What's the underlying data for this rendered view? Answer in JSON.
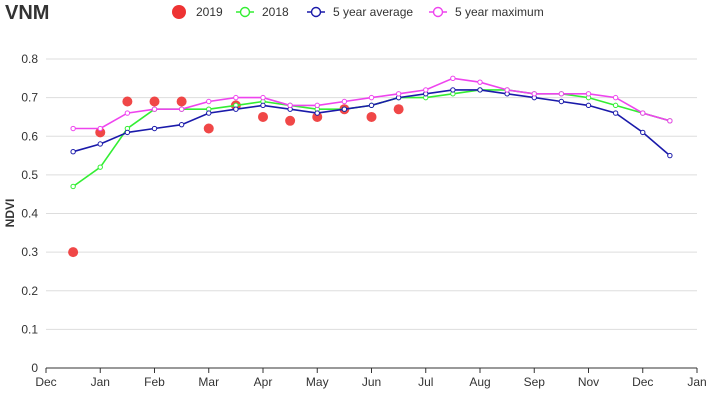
{
  "chart_data": {
    "type": "line",
    "title": "VNM",
    "xlabel": "",
    "ylabel": "NDVI",
    "ylim": [
      0,
      0.8
    ],
    "xlim": [
      "Dec",
      "Jan"
    ],
    "x_tick_labels": [
      "Dec",
      "Jan",
      "Feb",
      "Mar",
      "Apr",
      "May",
      "Jun",
      "Jul",
      "Aug",
      "Sep",
      "Nov",
      "Dec",
      "Jan"
    ],
    "y_ticks": [
      0,
      0.1,
      0.2,
      0.3,
      0.4,
      0.5,
      0.6,
      0.7,
      0.8
    ],
    "y_tick_labels": [
      "0",
      "0.1",
      "0.2",
      "0.3",
      "0.4",
      "0.5",
      "0.6",
      "0.7",
      "0.8"
    ],
    "grid": true,
    "legend_position": "top-center",
    "series": [
      {
        "name": "2019",
        "style": "scatter",
        "color": "#ee3333",
        "points": [
          {
            "x": 0.5,
            "y": 0.3
          },
          {
            "x": 1.0,
            "y": 0.61
          },
          {
            "x": 1.5,
            "y": 0.69
          },
          {
            "x": 2.0,
            "y": 0.69
          },
          {
            "x": 2.5,
            "y": 0.69
          },
          {
            "x": 3.0,
            "y": 0.62
          },
          {
            "x": 3.5,
            "y": 0.68
          },
          {
            "x": 4.0,
            "y": 0.65
          },
          {
            "x": 4.5,
            "y": 0.64
          },
          {
            "x": 5.0,
            "y": 0.65
          },
          {
            "x": 5.5,
            "y": 0.67
          },
          {
            "x": 6.0,
            "y": 0.65
          },
          {
            "x": 6.5,
            "y": 0.67
          }
        ]
      },
      {
        "name": "2018",
        "style": "line",
        "color": "#33ee33",
        "points": [
          {
            "x": 0.5,
            "y": 0.47
          },
          {
            "x": 1.0,
            "y": 0.52
          },
          {
            "x": 1.5,
            "y": 0.62
          },
          {
            "x": 2.0,
            "y": 0.67
          },
          {
            "x": 2.5,
            "y": 0.67
          },
          {
            "x": 3.0,
            "y": 0.67
          },
          {
            "x": 3.5,
            "y": 0.68
          },
          {
            "x": 4.0,
            "y": 0.69
          },
          {
            "x": 4.5,
            "y": 0.68
          },
          {
            "x": 5.0,
            "y": 0.67
          },
          {
            "x": 5.5,
            "y": 0.67
          },
          {
            "x": 6.0,
            "y": 0.68
          },
          {
            "x": 6.5,
            "y": 0.7
          },
          {
            "x": 7.0,
            "y": 0.7
          },
          {
            "x": 7.5,
            "y": 0.71
          },
          {
            "x": 8.0,
            "y": 0.72
          },
          {
            "x": 8.5,
            "y": 0.72
          },
          {
            "x": 9.0,
            "y": 0.71
          },
          {
            "x": 9.5,
            "y": 0.71
          },
          {
            "x": 10.0,
            "y": 0.7
          },
          {
            "x": 10.5,
            "y": 0.68
          },
          {
            "x": 11.0,
            "y": 0.66
          },
          {
            "x": 11.5,
            "y": 0.64
          }
        ]
      },
      {
        "name": "5 year average",
        "style": "line",
        "color": "#1a1aaa",
        "points": [
          {
            "x": 0.5,
            "y": 0.56
          },
          {
            "x": 1.0,
            "y": 0.58
          },
          {
            "x": 1.5,
            "y": 0.61
          },
          {
            "x": 2.0,
            "y": 0.62
          },
          {
            "x": 2.5,
            "y": 0.63
          },
          {
            "x": 3.0,
            "y": 0.66
          },
          {
            "x": 3.5,
            "y": 0.67
          },
          {
            "x": 4.0,
            "y": 0.68
          },
          {
            "x": 4.5,
            "y": 0.67
          },
          {
            "x": 5.0,
            "y": 0.66
          },
          {
            "x": 5.5,
            "y": 0.67
          },
          {
            "x": 6.0,
            "y": 0.68
          },
          {
            "x": 6.5,
            "y": 0.7
          },
          {
            "x": 7.0,
            "y": 0.71
          },
          {
            "x": 7.5,
            "y": 0.72
          },
          {
            "x": 8.0,
            "y": 0.72
          },
          {
            "x": 8.5,
            "y": 0.71
          },
          {
            "x": 9.0,
            "y": 0.7
          },
          {
            "x": 9.5,
            "y": 0.69
          },
          {
            "x": 10.0,
            "y": 0.68
          },
          {
            "x": 10.5,
            "y": 0.66
          },
          {
            "x": 11.0,
            "y": 0.61
          },
          {
            "x": 11.5,
            "y": 0.55
          }
        ]
      },
      {
        "name": "5 year maximum",
        "style": "line",
        "color": "#ee44ee",
        "points": [
          {
            "x": 0.5,
            "y": 0.62
          },
          {
            "x": 1.0,
            "y": 0.62
          },
          {
            "x": 1.5,
            "y": 0.66
          },
          {
            "x": 2.0,
            "y": 0.67
          },
          {
            "x": 2.5,
            "y": 0.67
          },
          {
            "x": 3.0,
            "y": 0.69
          },
          {
            "x": 3.5,
            "y": 0.7
          },
          {
            "x": 4.0,
            "y": 0.7
          },
          {
            "x": 4.5,
            "y": 0.68
          },
          {
            "x": 5.0,
            "y": 0.68
          },
          {
            "x": 5.5,
            "y": 0.69
          },
          {
            "x": 6.0,
            "y": 0.7
          },
          {
            "x": 6.5,
            "y": 0.71
          },
          {
            "x": 7.0,
            "y": 0.72
          },
          {
            "x": 7.5,
            "y": 0.75
          },
          {
            "x": 8.0,
            "y": 0.74
          },
          {
            "x": 8.5,
            "y": 0.72
          },
          {
            "x": 9.0,
            "y": 0.71
          },
          {
            "x": 9.5,
            "y": 0.71
          },
          {
            "x": 10.0,
            "y": 0.71
          },
          {
            "x": 10.5,
            "y": 0.7
          },
          {
            "x": 11.0,
            "y": 0.66
          },
          {
            "x": 11.5,
            "y": 0.64
          }
        ]
      }
    ]
  }
}
